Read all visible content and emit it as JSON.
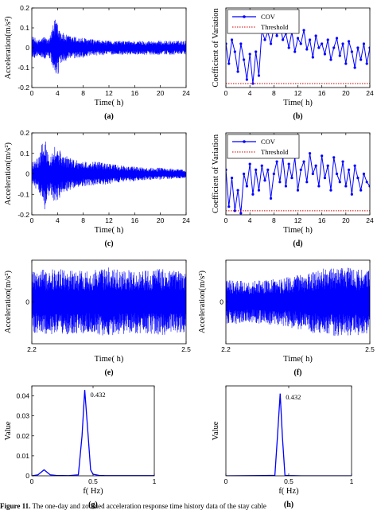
{
  "colors": {
    "signal": "#0000ff",
    "threshold": "#cc0000",
    "axis": "#000000"
  },
  "caption": {
    "label": "Figure 11.",
    "text": "The one-day and zoomed acceleration response time history data of the stay cable"
  },
  "chart_data": [
    {
      "id": "a",
      "panel_label": "(a)",
      "type": "line",
      "xlabel": "Time( h)",
      "ylabel": "Acceleration(m/s²)",
      "xlim": [
        0,
        24
      ],
      "ylim": [
        -0.2,
        0.2
      ],
      "xticks": [
        0,
        4,
        8,
        12,
        16,
        20,
        24
      ],
      "yticks": [
        -0.2,
        -0.1,
        0,
        0.1,
        0.2
      ],
      "envelope": {
        "x": [
          0,
          1,
          2,
          2.5,
          3,
          3.5,
          3.8,
          4,
          4.3,
          5,
          6,
          8,
          10,
          12,
          14,
          16,
          18,
          20,
          22,
          24
        ],
        "y": [
          0.06,
          0.04,
          0.06,
          0.04,
          0.07,
          0.14,
          0.17,
          0.16,
          0.1,
          0.07,
          0.06,
          0.05,
          0.04,
          0.035,
          0.035,
          0.035,
          0.035,
          0.035,
          0.035,
          0.035
        ]
      },
      "legend": null
    },
    {
      "id": "b",
      "panel_label": "(b)",
      "type": "line",
      "xlabel": "Time( h)",
      "ylabel": "Coefficient of Variation",
      "xlim": [
        0,
        24
      ],
      "ylim": [
        0,
        1
      ],
      "xticks": [
        0,
        4,
        8,
        12,
        16,
        20,
        24
      ],
      "yticks": [],
      "legend": {
        "placement": "top-left",
        "entries": [
          "COV",
          "Threshold"
        ]
      },
      "series": [
        {
          "name": "COV",
          "style": "line-marker",
          "x": [
            0,
            0.5,
            1,
            1.5,
            2,
            2.5,
            3,
            3.5,
            4,
            4.5,
            5,
            5.5,
            6,
            6.5,
            7,
            7.5,
            8,
            8.5,
            9,
            9.5,
            10,
            10.5,
            11,
            11.5,
            12,
            12.5,
            13,
            13.5,
            14,
            14.5,
            15,
            15.5,
            16,
            16.5,
            17,
            17.5,
            18,
            18.5,
            19,
            19.5,
            20,
            20.5,
            21,
            21.5,
            22,
            22.5,
            23,
            23.5,
            24
          ],
          "y": [
            0.55,
            0.3,
            0.6,
            0.45,
            0.2,
            0.55,
            0.35,
            0.1,
            0.42,
            0.05,
            0.45,
            0.15,
            0.72,
            0.6,
            0.7,
            0.55,
            0.75,
            0.65,
            0.8,
            0.6,
            0.68,
            0.5,
            0.7,
            0.45,
            0.62,
            0.55,
            0.72,
            0.48,
            0.6,
            0.38,
            0.65,
            0.5,
            0.55,
            0.42,
            0.6,
            0.35,
            0.5,
            0.62,
            0.4,
            0.55,
            0.3,
            0.58,
            0.45,
            0.25,
            0.5,
            0.35,
            0.55,
            0.3,
            0.5
          ]
        },
        {
          "name": "Threshold",
          "style": "dotted",
          "x": [
            0,
            24
          ],
          "y": [
            0.05,
            0.05
          ]
        }
      ]
    },
    {
      "id": "c",
      "panel_label": "(c)",
      "type": "line",
      "xlabel": "Time( h)",
      "ylabel": "Acceleration(m/s²)",
      "xlim": [
        0,
        24
      ],
      "ylim": [
        -0.2,
        0.2
      ],
      "xticks": [
        0,
        4,
        8,
        12,
        16,
        20,
        24
      ],
      "yticks": [
        -0.2,
        -0.1,
        0,
        0.1,
        0.2
      ],
      "envelope": {
        "x": [
          0,
          1,
          1.5,
          2,
          2.5,
          3,
          3.5,
          4,
          4.5,
          5,
          6,
          8,
          10,
          12,
          14,
          16,
          18,
          20,
          22,
          24
        ],
        "y": [
          0.06,
          0.08,
          0.14,
          0.18,
          0.12,
          0.1,
          0.14,
          0.13,
          0.11,
          0.09,
          0.08,
          0.06,
          0.06,
          0.05,
          0.04,
          0.035,
          0.03,
          0.03,
          0.025,
          0.02
        ]
      },
      "legend": null
    },
    {
      "id": "d",
      "panel_label": "(d)",
      "type": "line",
      "xlabel": "Time( h)",
      "ylabel": "Coefficient of Variation",
      "xlim": [
        0,
        24
      ],
      "ylim": [
        0,
        1
      ],
      "xticks": [
        0,
        4,
        8,
        12,
        16,
        20,
        24
      ],
      "yticks": [],
      "legend": {
        "placement": "top-left",
        "entries": [
          "COV",
          "Threshold"
        ]
      },
      "series": [
        {
          "name": "COV",
          "style": "line-marker",
          "x": [
            0,
            0.5,
            1,
            1.5,
            2,
            2.5,
            3,
            3.5,
            4,
            4.5,
            5,
            5.5,
            6,
            6.5,
            7,
            7.5,
            8,
            8.5,
            9,
            9.5,
            10,
            10.5,
            11,
            11.5,
            12,
            12.5,
            13,
            13.5,
            14,
            14.5,
            15,
            15.5,
            16,
            16.5,
            17,
            17.5,
            18,
            18.5,
            19,
            19.5,
            20,
            20.5,
            21,
            21.5,
            22,
            22.5,
            23,
            23.5,
            24
          ],
          "y": [
            0.55,
            0.1,
            0.45,
            0.05,
            0.3,
            0.02,
            0.5,
            0.35,
            0.62,
            0.25,
            0.55,
            0.3,
            0.6,
            0.42,
            0.55,
            0.2,
            0.5,
            0.65,
            0.4,
            0.7,
            0.35,
            0.62,
            0.45,
            0.7,
            0.3,
            0.55,
            0.65,
            0.4,
            0.75,
            0.5,
            0.6,
            0.35,
            0.72,
            0.45,
            0.6,
            0.3,
            0.7,
            0.5,
            0.4,
            0.65,
            0.35,
            0.55,
            0.25,
            0.6,
            0.45,
            0.3,
            0.5,
            0.4,
            0.35
          ]
        },
        {
          "name": "Threshold",
          "style": "dotted",
          "x": [
            0,
            24
          ],
          "y": [
            0.05,
            0.05
          ]
        }
      ]
    },
    {
      "id": "e",
      "panel_label": "(e)",
      "type": "line",
      "xlabel": "Time( h)",
      "ylabel": "Acceleration(m/s²)",
      "xlim": [
        2.2,
        2.5
      ],
      "ylim": [
        -0.04,
        0.04
      ],
      "xticks": [
        2.2,
        2.5
      ],
      "yticks": [
        0
      ],
      "envelope": {
        "x": [
          2.2,
          2.25,
          2.3,
          2.35,
          2.4,
          2.45,
          2.5
        ],
        "y": [
          0.03,
          0.032,
          0.03,
          0.033,
          0.03,
          0.032,
          0.03
        ]
      },
      "legend": null
    },
    {
      "id": "f",
      "panel_label": "(f)",
      "type": "line",
      "xlabel": "Time( h)",
      "ylabel": "Acceleration(m/s²)",
      "xlim": [
        2.2,
        2.5
      ],
      "ylim": [
        -0.04,
        0.04
      ],
      "xticks": [
        2.2,
        2.5
      ],
      "yticks": [
        0
      ],
      "envelope": {
        "x": [
          2.2,
          2.25,
          2.3,
          2.35,
          2.4,
          2.45,
          2.5
        ],
        "y": [
          0.022,
          0.02,
          0.022,
          0.026,
          0.032,
          0.034,
          0.03
        ]
      },
      "legend": null
    },
    {
      "id": "g",
      "panel_label": "(g)",
      "type": "line",
      "xlabel": "f( Hz)",
      "ylabel": "Value",
      "xlim": [
        0,
        1
      ],
      "ylim": [
        0,
        0.045
      ],
      "xticks": [
        0,
        0.5,
        1
      ],
      "yticks": [
        0,
        0.01,
        0.02,
        0.03,
        0.04
      ],
      "peak_label": {
        "x": 0.432,
        "y": 0.041,
        "text": "0.432"
      },
      "series": [
        {
          "name": "",
          "x": [
            0,
            0.05,
            0.1,
            0.15,
            0.2,
            0.3,
            0.38,
            0.41,
            0.432,
            0.46,
            0.48,
            0.5,
            0.55,
            0.6,
            0.8,
            1
          ],
          "y": [
            0,
            0.0005,
            0.003,
            0.0005,
            0.0002,
            0.0001,
            0.0005,
            0.02,
            0.043,
            0.02,
            0.003,
            0.0008,
            0.0002,
            0.0001,
            0.0001,
            0.0001
          ]
        }
      ],
      "legend": null
    },
    {
      "id": "h",
      "panel_label": "(h)",
      "type": "line",
      "xlabel": "f( Hz)",
      "ylabel": "Value",
      "xlim": [
        0,
        1
      ],
      "ylim": [
        0,
        0.035
      ],
      "xticks": [
        0,
        0.5,
        1
      ],
      "yticks": [],
      "peak_label": {
        "x": 0.432,
        "y": 0.031,
        "text": "0.432"
      },
      "series": [
        {
          "name": "",
          "x": [
            0,
            0.3,
            0.39,
            0.41,
            0.432,
            0.45,
            0.47,
            0.5,
            0.6,
            1
          ],
          "y": [
            0,
            0.0001,
            0.0002,
            0.015,
            0.032,
            0.015,
            0.0002,
            0.0001,
            0,
            0
          ]
        }
      ],
      "legend": null
    }
  ]
}
